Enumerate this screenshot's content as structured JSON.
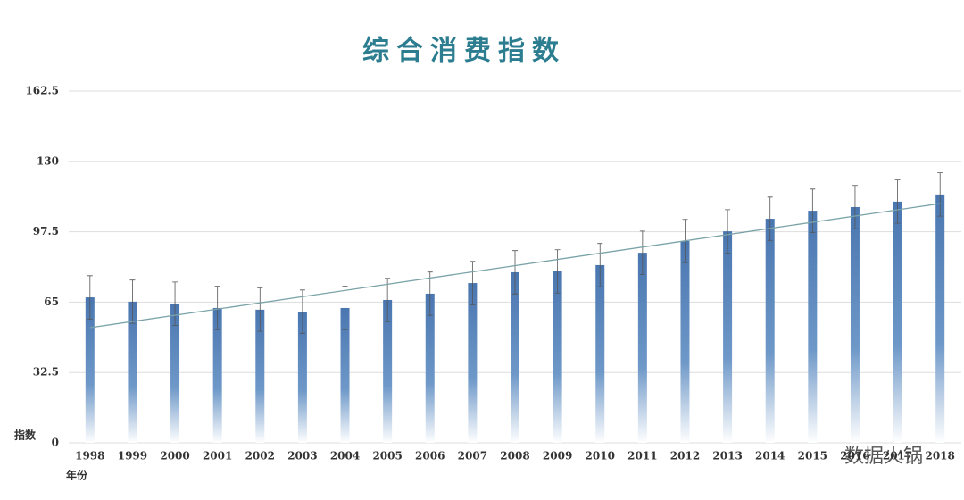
{
  "chart_data": {
    "type": "bar",
    "title": "综合消费指数",
    "y_label": "指数",
    "x_label": "年份",
    "watermark": "数据火锅",
    "categories": [
      "1998",
      "1999",
      "2000",
      "2001",
      "2002",
      "2003",
      "2004",
      "2005",
      "2006",
      "2007",
      "2008",
      "2009",
      "2010",
      "2011",
      "2012",
      "2013",
      "2014",
      "2015",
      "2016",
      "2017",
      "2018"
    ],
    "values": [
      67.2,
      65.2,
      64.3,
      62.3,
      61.5,
      60.6,
      62.3,
      66,
      68.9,
      73.8,
      78.8,
      79.2,
      82.1,
      87.8,
      93.2,
      97.7,
      103.5,
      107.2,
      108.9,
      111.4,
      114.7
    ],
    "errors": [
      10,
      10,
      10,
      10,
      10,
      10,
      10,
      10,
      10,
      10,
      10,
      10,
      10,
      10,
      10,
      10,
      10,
      10,
      10,
      10,
      10
    ],
    "trendline": [
      53.2,
      110.5
    ],
    "color": "#4a76b0",
    "trend_color": "#7aa3a8",
    "ylim": [
      0,
      162.5
    ],
    "yticks": [
      0,
      32.5,
      65,
      97.5,
      130,
      162.5
    ],
    "grid": true
  }
}
